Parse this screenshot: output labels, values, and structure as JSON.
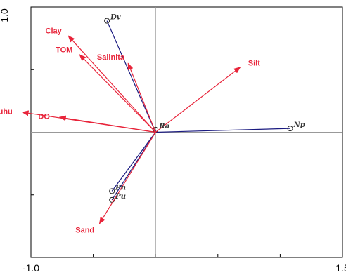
{
  "chart_data": {
    "type": "scatter",
    "title": "",
    "xlabel": "",
    "ylabel": "",
    "xlim": [
      -1.0,
      1.5
    ],
    "ylim": [
      -1.0,
      1.0
    ],
    "tick_labels": {
      "x_left": "-1.0",
      "x_right": "1.5",
      "y_top": "1.0"
    },
    "colors": {
      "environment": "#e8243a",
      "species": "#1a1a80",
      "axes": "#999999",
      "frame": "#000000"
    },
    "environmental_vectors": [
      {
        "label": "Clay",
        "x": -0.7,
        "y": 0.77
      },
      {
        "label": "TOM",
        "x": -0.61,
        "y": 0.62
      },
      {
        "label": "Salinita",
        "x": -0.22,
        "y": 0.55
      },
      {
        "label": "Silt",
        "x": 0.68,
        "y": 0.52
      },
      {
        "label": "Suhu",
        "x": -1.07,
        "y": 0.16
      },
      {
        "label": "DO",
        "x": -0.77,
        "y": 0.12
      },
      {
        "label": "Sand",
        "x": -0.45,
        "y": -0.73
      }
    ],
    "species": [
      {
        "label": "Dv",
        "x": -0.39,
        "y": 0.89
      },
      {
        "label": "Np",
        "x": 1.08,
        "y": 0.03
      },
      {
        "label": "Ra",
        "x": 0.0,
        "y": 0.02
      },
      {
        "label": "Pn",
        "x": -0.35,
        "y": -0.47
      },
      {
        "label": "Pu",
        "x": -0.35,
        "y": -0.54
      }
    ]
  }
}
